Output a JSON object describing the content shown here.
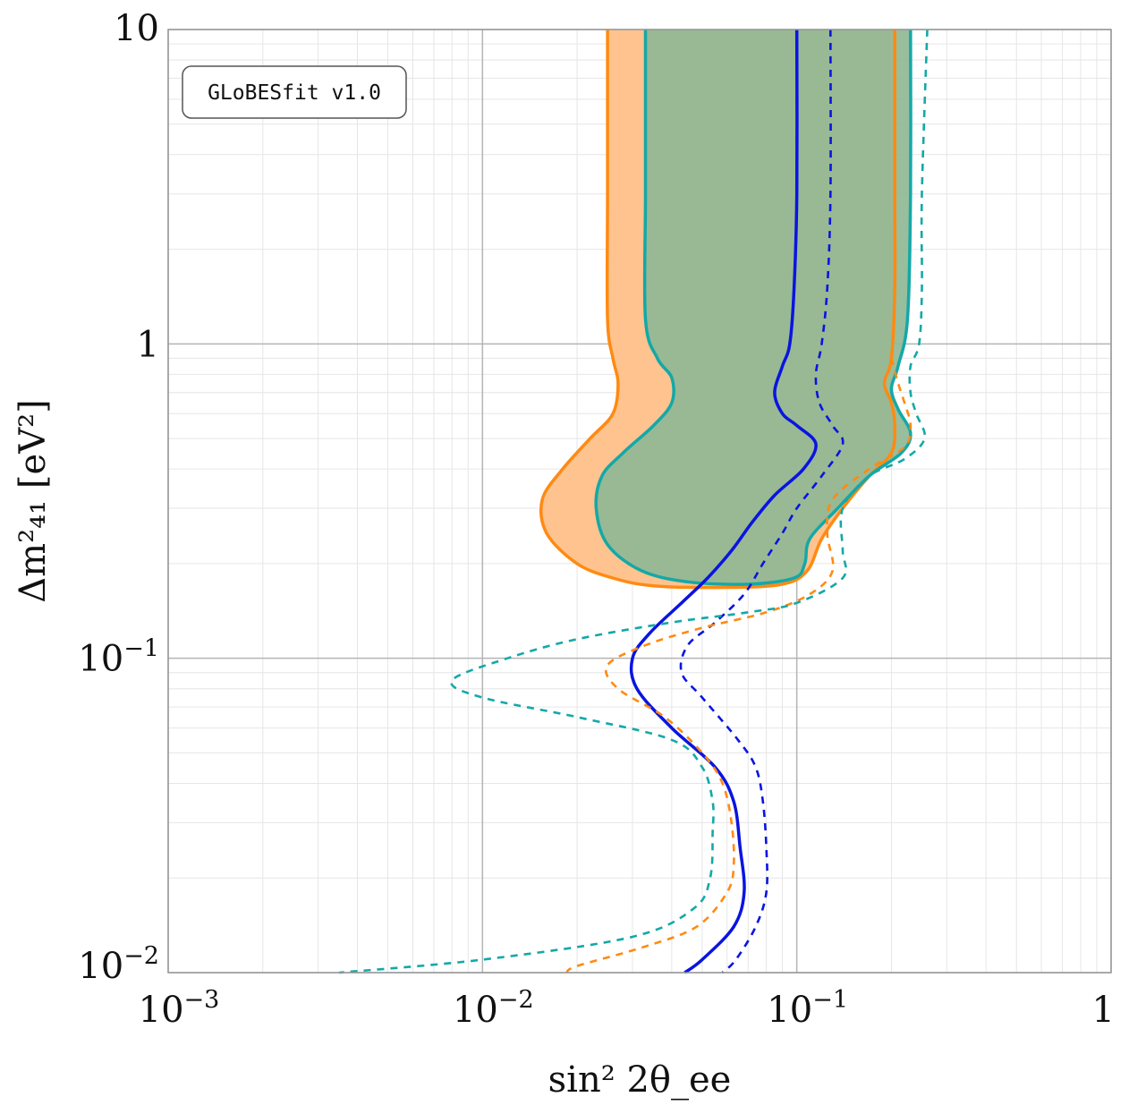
{
  "chart_data": {
    "type": "line",
    "xscale": "log",
    "yscale": "log",
    "xlim": [
      0.001,
      1
    ],
    "ylim": [
      0.01,
      10
    ],
    "grid": true,
    "xlabel": "sin² 2θ_ee",
    "ylabel": "Δm²₄₁ [eV²]",
    "annotation": "GLoBESfit v1.0",
    "xticks": [
      {
        "value": 0.001,
        "base": "10",
        "exp": "−3"
      },
      {
        "value": 0.01,
        "base": "10",
        "exp": "−2"
      },
      {
        "value": 0.1,
        "base": "10",
        "exp": "−1"
      },
      {
        "value": 1,
        "base": "1",
        "exp": ""
      }
    ],
    "yticks": [
      {
        "value": 0.01,
        "base": "10",
        "exp": "−2"
      },
      {
        "value": 0.1,
        "base": "10",
        "exp": "−1"
      },
      {
        "value": 1,
        "base": "1",
        "exp": ""
      },
      {
        "value": 10,
        "base": "10",
        "exp": ""
      }
    ],
    "regions": [
      {
        "color": "#ffc38f",
        "stroke": "#ff8a12",
        "points": [
          [
            0.025,
            10
          ],
          [
            0.025,
            3
          ],
          [
            0.025,
            1.2
          ],
          [
            0.026,
            0.9
          ],
          [
            0.027,
            0.75
          ],
          [
            0.026,
            0.6
          ],
          [
            0.022,
            0.5
          ],
          [
            0.018,
            0.4
          ],
          [
            0.0155,
            0.32
          ],
          [
            0.016,
            0.25
          ],
          [
            0.02,
            0.2
          ],
          [
            0.026,
            0.18
          ],
          [
            0.035,
            0.17
          ],
          [
            0.06,
            0.168
          ],
          [
            0.09,
            0.172
          ],
          [
            0.108,
            0.19
          ],
          [
            0.12,
            0.24
          ],
          [
            0.14,
            0.3
          ],
          [
            0.17,
            0.38
          ],
          [
            0.2,
            0.45
          ],
          [
            0.205,
            0.55
          ],
          [
            0.2,
            0.65
          ],
          [
            0.19,
            0.75
          ],
          [
            0.2,
            0.9
          ],
          [
            0.205,
            1.5
          ],
          [
            0.205,
            3
          ],
          [
            0.205,
            10
          ]
        ]
      },
      {
        "color": "#8fb995",
        "stroke": "#14a8a8",
        "points": [
          [
            0.033,
            10
          ],
          [
            0.033,
            3
          ],
          [
            0.033,
            1.2
          ],
          [
            0.036,
            0.9
          ],
          [
            0.04,
            0.78
          ],
          [
            0.04,
            0.65
          ],
          [
            0.035,
            0.55
          ],
          [
            0.028,
            0.45
          ],
          [
            0.024,
            0.38
          ],
          [
            0.023,
            0.3
          ],
          [
            0.025,
            0.23
          ],
          [
            0.032,
            0.19
          ],
          [
            0.045,
            0.175
          ],
          [
            0.07,
            0.172
          ],
          [
            0.098,
            0.18
          ],
          [
            0.106,
            0.2
          ],
          [
            0.11,
            0.24
          ],
          [
            0.135,
            0.3
          ],
          [
            0.17,
            0.38
          ],
          [
            0.215,
            0.45
          ],
          [
            0.23,
            0.52
          ],
          [
            0.21,
            0.62
          ],
          [
            0.2,
            0.72
          ],
          [
            0.21,
            0.85
          ],
          [
            0.225,
            1.2
          ],
          [
            0.23,
            3
          ],
          [
            0.23,
            10
          ]
        ]
      }
    ],
    "series": [
      {
        "color": "#0a14e0",
        "dash": "",
        "width": 3.5,
        "points": [
          [
            0.1,
            10
          ],
          [
            0.1,
            3
          ],
          [
            0.098,
            1.5
          ],
          [
            0.095,
            1
          ],
          [
            0.09,
            0.85
          ],
          [
            0.085,
            0.7
          ],
          [
            0.09,
            0.6
          ],
          [
            0.1,
            0.55
          ],
          [
            0.115,
            0.48
          ],
          [
            0.105,
            0.4
          ],
          [
            0.085,
            0.33
          ],
          [
            0.072,
            0.27
          ],
          [
            0.062,
            0.22
          ],
          [
            0.052,
            0.18
          ],
          [
            0.043,
            0.15
          ],
          [
            0.034,
            0.12
          ],
          [
            0.03,
            0.1
          ],
          [
            0.031,
            0.08
          ],
          [
            0.04,
            0.06
          ],
          [
            0.055,
            0.045
          ],
          [
            0.063,
            0.035
          ],
          [
            0.066,
            0.025
          ],
          [
            0.068,
            0.018
          ],
          [
            0.063,
            0.014
          ],
          [
            0.05,
            0.011
          ],
          [
            0.044,
            0.01
          ]
        ]
      },
      {
        "color": "#0a14e0",
        "dash": "8,7",
        "width": 2.6,
        "points": [
          [
            0.128,
            10
          ],
          [
            0.128,
            3
          ],
          [
            0.125,
            1.5
          ],
          [
            0.12,
            1
          ],
          [
            0.115,
            0.8
          ],
          [
            0.118,
            0.65
          ],
          [
            0.13,
            0.55
          ],
          [
            0.14,
            0.48
          ],
          [
            0.12,
            0.38
          ],
          [
            0.1,
            0.3
          ],
          [
            0.09,
            0.25
          ],
          [
            0.078,
            0.2
          ],
          [
            0.068,
            0.16
          ],
          [
            0.055,
            0.13
          ],
          [
            0.045,
            0.11
          ],
          [
            0.043,
            0.09
          ],
          [
            0.05,
            0.075
          ],
          [
            0.065,
            0.055
          ],
          [
            0.074,
            0.045
          ],
          [
            0.078,
            0.035
          ],
          [
            0.08,
            0.025
          ],
          [
            0.08,
            0.018
          ],
          [
            0.074,
            0.014
          ],
          [
            0.064,
            0.011
          ],
          [
            0.058,
            0.01
          ]
        ]
      },
      {
        "color": "#ff8a12",
        "dash": "8,7",
        "width": 2.6,
        "points": [
          [
            0.2,
            0.9
          ],
          [
            0.21,
            0.75
          ],
          [
            0.22,
            0.65
          ],
          [
            0.23,
            0.55
          ],
          [
            0.22,
            0.47
          ],
          [
            0.17,
            0.4
          ],
          [
            0.13,
            0.32
          ],
          [
            0.125,
            0.25
          ],
          [
            0.13,
            0.19
          ],
          [
            0.11,
            0.16
          ],
          [
            0.08,
            0.14
          ],
          [
            0.05,
            0.125
          ],
          [
            0.033,
            0.11
          ],
          [
            0.025,
            0.095
          ],
          [
            0.027,
            0.08
          ],
          [
            0.038,
            0.065
          ],
          [
            0.05,
            0.05
          ],
          [
            0.058,
            0.04
          ],
          [
            0.062,
            0.03
          ],
          [
            0.063,
            0.022
          ],
          [
            0.06,
            0.018
          ],
          [
            0.048,
            0.014
          ],
          [
            0.032,
            0.012
          ],
          [
            0.02,
            0.0105
          ],
          [
            0.0185,
            0.01
          ]
        ]
      },
      {
        "color": "#14a8a8",
        "dash": "8,7",
        "width": 2.6,
        "points": [
          [
            0.26,
            10
          ],
          [
            0.25,
            3
          ],
          [
            0.25,
            1.5
          ],
          [
            0.245,
            1
          ],
          [
            0.23,
            0.85
          ],
          [
            0.23,
            0.7
          ],
          [
            0.24,
            0.6
          ],
          [
            0.255,
            0.5
          ],
          [
            0.22,
            0.43
          ],
          [
            0.17,
            0.38
          ],
          [
            0.14,
            0.3
          ],
          [
            0.14,
            0.22
          ],
          [
            0.14,
            0.18
          ],
          [
            0.1,
            0.15
          ],
          [
            0.07,
            0.14
          ],
          [
            0.04,
            0.13
          ],
          [
            0.02,
            0.115
          ],
          [
            0.012,
            0.1
          ],
          [
            0.008,
            0.085
          ],
          [
            0.01,
            0.075
          ],
          [
            0.02,
            0.065
          ],
          [
            0.04,
            0.055
          ],
          [
            0.05,
            0.045
          ],
          [
            0.054,
            0.035
          ],
          [
            0.054,
            0.028
          ],
          [
            0.053,
            0.02
          ],
          [
            0.047,
            0.016
          ],
          [
            0.03,
            0.013
          ],
          [
            0.01,
            0.011
          ],
          [
            0.0035,
            0.01
          ]
        ]
      }
    ]
  }
}
